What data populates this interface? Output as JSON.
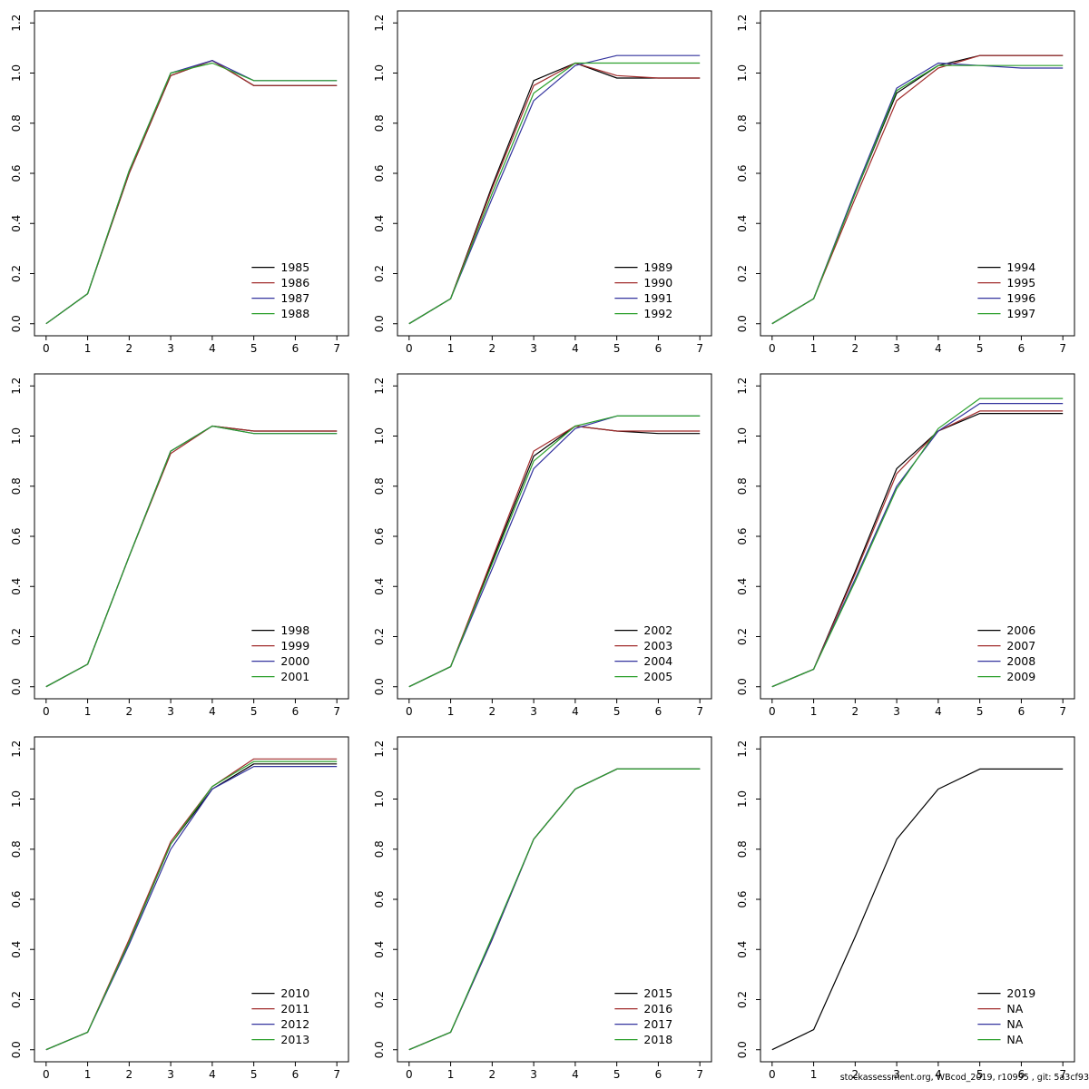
{
  "footer": {
    "text": "stockassessment.org, WBcod_2019, r10995 , git: 5a3cf93"
  },
  "colors": {
    "series": [
      "#000000",
      "#a12b2b",
      "#33339e",
      "#2ca02c"
    ]
  },
  "axes": {
    "x_ticks": [
      "0",
      "1",
      "2",
      "3",
      "4",
      "5",
      "6",
      "7"
    ],
    "y_ticks": [
      "0.0",
      "0.2",
      "0.4",
      "0.6",
      "0.8",
      "1.0",
      "1.2"
    ]
  },
  "chart_data": [
    {
      "id": "1985-1988",
      "type": "line",
      "x": [
        0,
        1,
        2,
        3,
        4,
        5,
        6,
        7
      ],
      "xlim": [
        0,
        7
      ],
      "ylim": [
        0,
        1.2
      ],
      "grid": false,
      "legend_position": "bottom-right",
      "series": [
        {
          "name": "1985",
          "values": [
            0.0,
            0.12,
            0.6,
            0.99,
            1.05,
            0.95,
            0.95,
            0.95
          ]
        },
        {
          "name": "1986",
          "values": [
            0.0,
            0.12,
            0.6,
            0.99,
            1.05,
            0.95,
            0.95,
            0.95
          ]
        },
        {
          "name": "1987",
          "values": [
            0.0,
            0.12,
            0.61,
            1.0,
            1.05,
            0.97,
            0.97,
            0.97
          ]
        },
        {
          "name": "1988",
          "values": [
            0.0,
            0.12,
            0.61,
            1.0,
            1.04,
            0.97,
            0.97,
            0.97
          ]
        }
      ]
    },
    {
      "id": "1989-1992",
      "type": "line",
      "x": [
        0,
        1,
        2,
        3,
        4,
        5,
        6,
        7
      ],
      "xlim": [
        0,
        7
      ],
      "ylim": [
        0,
        1.2
      ],
      "grid": false,
      "legend_position": "bottom-right",
      "series": [
        {
          "name": "1989",
          "values": [
            0.0,
            0.1,
            0.55,
            0.97,
            1.04,
            0.98,
            0.98,
            0.98
          ]
        },
        {
          "name": "1990",
          "values": [
            0.0,
            0.1,
            0.54,
            0.95,
            1.04,
            0.99,
            0.98,
            0.98
          ]
        },
        {
          "name": "1991",
          "values": [
            0.0,
            0.1,
            0.5,
            0.89,
            1.03,
            1.07,
            1.07,
            1.07
          ]
        },
        {
          "name": "1992",
          "values": [
            0.0,
            0.1,
            0.52,
            0.92,
            1.04,
            1.04,
            1.04,
            1.04
          ]
        }
      ]
    },
    {
      "id": "1994-1997",
      "type": "line",
      "x": [
        0,
        1,
        2,
        3,
        4,
        5,
        6,
        7
      ],
      "xlim": [
        0,
        7
      ],
      "ylim": [
        0,
        1.2
      ],
      "grid": false,
      "legend_position": "bottom-right",
      "series": [
        {
          "name": "1994",
          "values": [
            0.0,
            0.1,
            0.52,
            0.92,
            1.03,
            1.07,
            1.07,
            1.07
          ]
        },
        {
          "name": "1995",
          "values": [
            0.0,
            0.1,
            0.5,
            0.89,
            1.02,
            1.07,
            1.07,
            1.07
          ]
        },
        {
          "name": "1996",
          "values": [
            0.0,
            0.1,
            0.53,
            0.94,
            1.04,
            1.03,
            1.02,
            1.02
          ]
        },
        {
          "name": "1997",
          "values": [
            0.0,
            0.1,
            0.52,
            0.93,
            1.03,
            1.03,
            1.03,
            1.03
          ]
        }
      ]
    },
    {
      "id": "1998-2001",
      "type": "line",
      "x": [
        0,
        1,
        2,
        3,
        4,
        5,
        6,
        7
      ],
      "xlim": [
        0,
        7
      ],
      "ylim": [
        0,
        1.2
      ],
      "grid": false,
      "legend_position": "bottom-right",
      "series": [
        {
          "name": "1998",
          "values": [
            0.0,
            0.09,
            0.52,
            0.94,
            1.04,
            1.02,
            1.02,
            1.02
          ]
        },
        {
          "name": "1999",
          "values": [
            0.0,
            0.09,
            0.52,
            0.93,
            1.04,
            1.02,
            1.02,
            1.02
          ]
        },
        {
          "name": "2000",
          "values": [
            0.0,
            0.09,
            0.52,
            0.94,
            1.04,
            1.01,
            1.01,
            1.01
          ]
        },
        {
          "name": "2001",
          "values": [
            0.0,
            0.09,
            0.52,
            0.94,
            1.04,
            1.01,
            1.01,
            1.01
          ]
        }
      ]
    },
    {
      "id": "2002-2005",
      "type": "line",
      "x": [
        0,
        1,
        2,
        3,
        4,
        5,
        6,
        7
      ],
      "xlim": [
        0,
        7
      ],
      "ylim": [
        0,
        1.2
      ],
      "grid": false,
      "legend_position": "bottom-right",
      "series": [
        {
          "name": "2002",
          "values": [
            0.0,
            0.08,
            0.5,
            0.92,
            1.04,
            1.02,
            1.01,
            1.01
          ]
        },
        {
          "name": "2003",
          "values": [
            0.0,
            0.08,
            0.51,
            0.94,
            1.04,
            1.02,
            1.02,
            1.02
          ]
        },
        {
          "name": "2004",
          "values": [
            0.0,
            0.08,
            0.47,
            0.87,
            1.03,
            1.08,
            1.08,
            1.08
          ]
        },
        {
          "name": "2005",
          "values": [
            0.0,
            0.08,
            0.49,
            0.9,
            1.04,
            1.08,
            1.08,
            1.08
          ]
        }
      ]
    },
    {
      "id": "2006-2009",
      "type": "line",
      "x": [
        0,
        1,
        2,
        3,
        4,
        5,
        6,
        7
      ],
      "xlim": [
        0,
        7
      ],
      "ylim": [
        0,
        1.2
      ],
      "grid": false,
      "legend_position": "bottom-right",
      "series": [
        {
          "name": "2006",
          "values": [
            0.0,
            0.07,
            0.46,
            0.87,
            1.02,
            1.09,
            1.09,
            1.09
          ]
        },
        {
          "name": "2007",
          "values": [
            0.0,
            0.07,
            0.45,
            0.85,
            1.02,
            1.1,
            1.1,
            1.1
          ]
        },
        {
          "name": "2008",
          "values": [
            0.0,
            0.07,
            0.43,
            0.8,
            1.02,
            1.13,
            1.13,
            1.13
          ]
        },
        {
          "name": "2009",
          "values": [
            0.0,
            0.07,
            0.42,
            0.79,
            1.03,
            1.15,
            1.15,
            1.15
          ]
        }
      ]
    },
    {
      "id": "2010-2013",
      "type": "line",
      "x": [
        0,
        1,
        2,
        3,
        4,
        5,
        6,
        7
      ],
      "xlim": [
        0,
        7
      ],
      "ylim": [
        0,
        1.2
      ],
      "grid": false,
      "legend_position": "bottom-right",
      "series": [
        {
          "name": "2010",
          "values": [
            0.0,
            0.07,
            0.43,
            0.82,
            1.04,
            1.14,
            1.14,
            1.14
          ]
        },
        {
          "name": "2011",
          "values": [
            0.0,
            0.07,
            0.44,
            0.83,
            1.05,
            1.16,
            1.16,
            1.16
          ]
        },
        {
          "name": "2012",
          "values": [
            0.0,
            0.07,
            0.42,
            0.8,
            1.04,
            1.13,
            1.13,
            1.13
          ]
        },
        {
          "name": "2013",
          "values": [
            0.0,
            0.07,
            0.43,
            0.82,
            1.05,
            1.15,
            1.15,
            1.15
          ]
        }
      ]
    },
    {
      "id": "2015-2018",
      "type": "line",
      "x": [
        0,
        1,
        2,
        3,
        4,
        5,
        6,
        7
      ],
      "xlim": [
        0,
        7
      ],
      "ylim": [
        0,
        1.2
      ],
      "grid": false,
      "legend_position": "bottom-right",
      "series": [
        {
          "name": "2015",
          "values": [
            0.0,
            0.07,
            0.44,
            0.84,
            1.04,
            1.12,
            1.12,
            1.12
          ]
        },
        {
          "name": "2016",
          "values": [
            0.0,
            0.07,
            0.44,
            0.84,
            1.04,
            1.12,
            1.12,
            1.12
          ]
        },
        {
          "name": "2017",
          "values": [
            0.0,
            0.07,
            0.44,
            0.84,
            1.04,
            1.12,
            1.12,
            1.12
          ]
        },
        {
          "name": "2018",
          "values": [
            0.0,
            0.07,
            0.45,
            0.84,
            1.04,
            1.12,
            1.12,
            1.12
          ]
        }
      ]
    },
    {
      "id": "2019-NA",
      "type": "line",
      "x": [
        0,
        1,
        2,
        3,
        4,
        5,
        6,
        7
      ],
      "xlim": [
        0,
        7
      ],
      "ylim": [
        0,
        1.2
      ],
      "grid": false,
      "legend_position": "bottom-right",
      "series": [
        {
          "name": "2019",
          "values": [
            0.0,
            0.08,
            0.45,
            0.84,
            1.04,
            1.12,
            1.12,
            1.12
          ]
        },
        {
          "name": "NA",
          "values": null
        },
        {
          "name": "NA",
          "values": null
        },
        {
          "name": "NA",
          "values": null
        }
      ]
    }
  ]
}
